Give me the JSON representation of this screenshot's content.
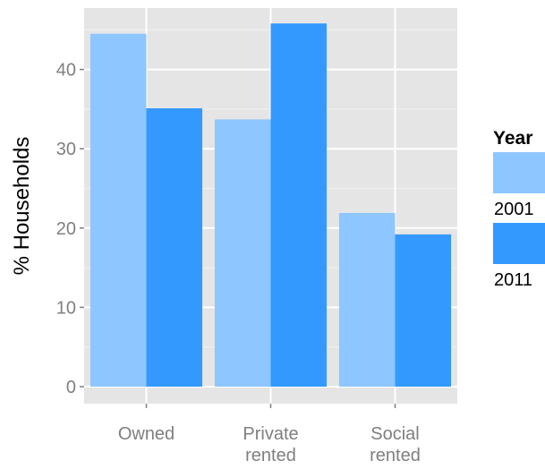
{
  "chart_data": {
    "type": "bar",
    "categories": [
      "Owned",
      "Private\nrented",
      "Social\nrented"
    ],
    "series": [
      {
        "name": "2001",
        "values": [
          44.5,
          33.7,
          21.9
        ],
        "color": "#8ec6ff"
      },
      {
        "name": "2011",
        "values": [
          35.1,
          45.8,
          19.2
        ],
        "color": "#3399ff"
      }
    ],
    "title": "",
    "xlabel": "",
    "ylabel": "% Households",
    "ylim": [
      0,
      46
    ],
    "yticks": [
      0,
      10,
      20,
      30,
      40
    ],
    "grid": true,
    "legend": {
      "title": "Year",
      "placement": "right"
    },
    "colors": {
      "panel_background": "#e5e5e5",
      "grid_major": "#ffffff",
      "grid_minor": "#f2f2f2",
      "tick_label": "#7f7f7f",
      "axis_title": "#000000"
    }
  }
}
